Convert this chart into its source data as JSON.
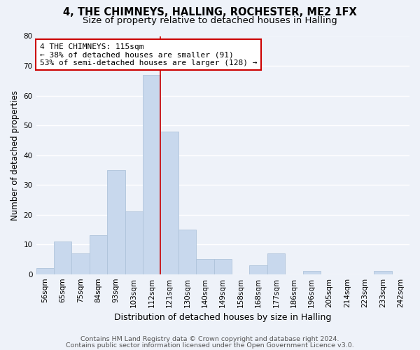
{
  "title": "4, THE CHIMNEYS, HALLING, ROCHESTER, ME2 1FX",
  "subtitle": "Size of property relative to detached houses in Halling",
  "xlabel": "Distribution of detached houses by size in Halling",
  "ylabel": "Number of detached properties",
  "bar_labels": [
    "56sqm",
    "65sqm",
    "75sqm",
    "84sqm",
    "93sqm",
    "103sqm",
    "112sqm",
    "121sqm",
    "130sqm",
    "140sqm",
    "149sqm",
    "158sqm",
    "168sqm",
    "177sqm",
    "186sqm",
    "196sqm",
    "205sqm",
    "214sqm",
    "223sqm",
    "233sqm",
    "242sqm"
  ],
  "bar_heights": [
    2,
    11,
    7,
    13,
    35,
    21,
    67,
    48,
    15,
    5,
    5,
    0,
    3,
    7,
    0,
    1,
    0,
    0,
    0,
    1,
    0
  ],
  "bar_color": "#c8d8ed",
  "bar_edge_color": "#afc4db",
  "vline_color": "#cc0000",
  "annotation_text": "4 THE CHIMNEYS: 115sqm\n← 38% of detached houses are smaller (91)\n53% of semi-detached houses are larger (128) →",
  "annotation_box_edge_color": "#cc0000",
  "ylim": [
    0,
    80
  ],
  "yticks": [
    0,
    10,
    20,
    30,
    40,
    50,
    60,
    70,
    80
  ],
  "footer1": "Contains HM Land Registry data © Crown copyright and database right 2024.",
  "footer2": "Contains public sector information licensed under the Open Government Licence v3.0.",
  "background_color": "#eef2f9",
  "grid_color": "#ffffff",
  "title_fontsize": 10.5,
  "subtitle_fontsize": 9.5,
  "xlabel_fontsize": 9,
  "ylabel_fontsize": 8.5,
  "tick_fontsize": 7.5,
  "annotation_fontsize": 8,
  "footer_fontsize": 6.8
}
